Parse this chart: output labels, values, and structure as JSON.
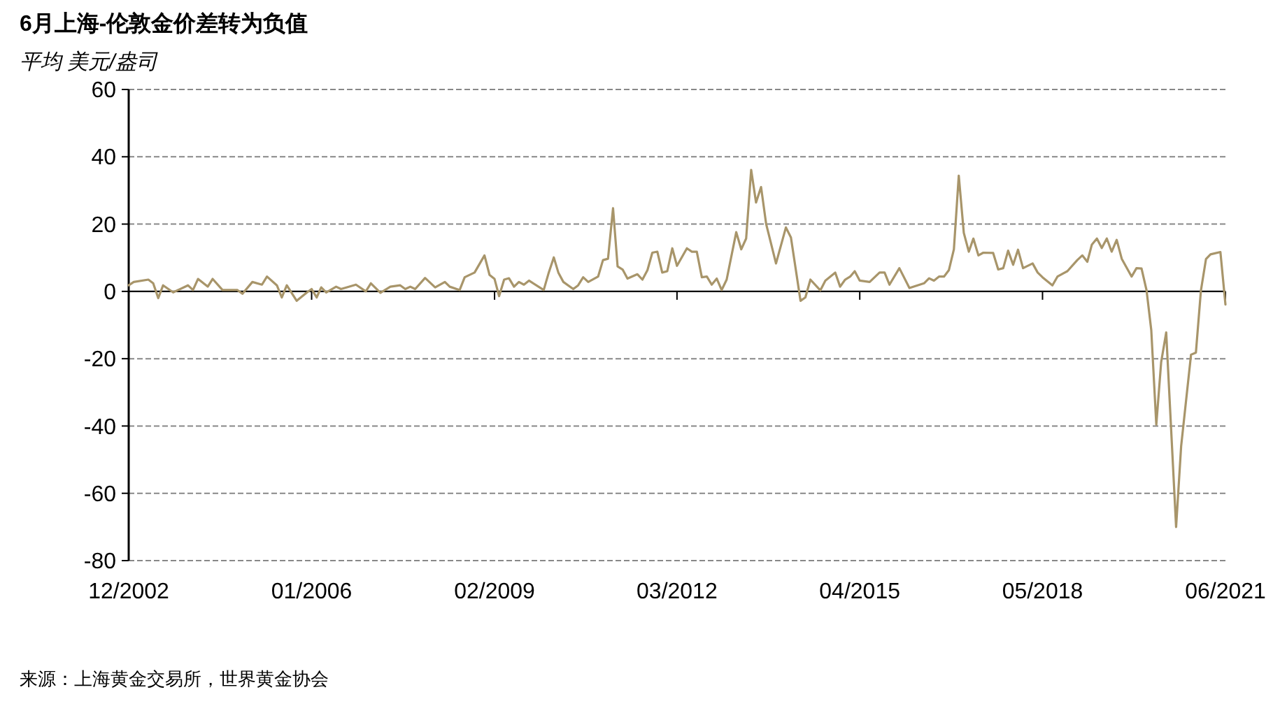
{
  "chart_data": {
    "type": "line",
    "title": "6月上海-伦敦金价差转为负值",
    "subtitle": "平均 美元/盎司",
    "x": [
      "2002-12",
      "2003-01",
      "2003-04",
      "2003-05",
      "2003-06",
      "2003-07",
      "2003-09",
      "2003-12",
      "2004-01",
      "2004-02",
      "2004-04",
      "2004-05",
      "2004-07",
      "2004-10",
      "2004-11",
      "2005-01",
      "2005-03",
      "2005-04",
      "2005-06",
      "2005-07",
      "2005-08",
      "2005-10",
      "2005-12",
      "2006-01",
      "2006-02",
      "2006-03",
      "2006-04",
      "2006-06",
      "2006-07",
      "2006-10",
      "2006-12",
      "2007-01",
      "2007-03",
      "2007-05",
      "2007-07",
      "2007-08",
      "2007-09",
      "2007-10",
      "2007-12",
      "2008-02",
      "2008-04",
      "2008-05",
      "2008-07",
      "2008-08",
      "2008-10",
      "2008-12",
      "2009-01",
      "2009-02",
      "2009-03",
      "2009-04",
      "2009-05",
      "2009-06",
      "2009-07",
      "2009-08",
      "2009-09",
      "2009-12",
      "2010-01",
      "2010-02",
      "2010-03",
      "2010-04",
      "2010-06",
      "2010-07",
      "2010-08",
      "2010-09",
      "2010-11",
      "2010-12",
      "2011-01",
      "2011-02",
      "2011-03",
      "2011-04",
      "2011-05",
      "2011-07",
      "2011-08",
      "2011-09",
      "2011-10",
      "2011-11",
      "2011-12",
      "2012-01",
      "2012-02",
      "2012-03",
      "2012-05",
      "2012-06",
      "2012-07",
      "2012-08",
      "2012-09",
      "2012-10",
      "2012-11",
      "2012-12",
      "2013-01",
      "2013-03",
      "2013-04",
      "2013-05",
      "2013-06",
      "2013-07",
      "2013-08",
      "2013-09",
      "2013-11",
      "2014-01",
      "2014-02",
      "2014-04",
      "2014-05",
      "2014-06",
      "2014-08",
      "2014-09",
      "2014-11",
      "2014-12",
      "2015-01",
      "2015-02",
      "2015-03",
      "2015-04",
      "2015-06",
      "2015-08",
      "2015-09",
      "2015-10",
      "2015-12",
      "2016-02",
      "2016-05",
      "2016-06",
      "2016-07",
      "2016-08",
      "2016-09",
      "2016-10",
      "2016-11",
      "2016-12",
      "2017-01",
      "2017-02",
      "2017-03",
      "2017-04",
      "2017-05",
      "2017-07",
      "2017-08",
      "2017-09",
      "2017-10",
      "2017-11",
      "2017-12",
      "2018-01",
      "2018-03",
      "2018-04",
      "2018-05",
      "2018-07",
      "2018-08",
      "2018-10",
      "2018-12",
      "2019-01",
      "2019-02",
      "2019-03",
      "2019-04",
      "2019-05",
      "2019-06",
      "2019-07",
      "2019-08",
      "2019-09",
      "2019-11",
      "2019-12",
      "2020-01",
      "2020-02",
      "2020-03",
      "2020-04",
      "2020-05",
      "2020-06",
      "2020-08",
      "2020-09",
      "2020-11",
      "2020-12",
      "2021-01",
      "2021-02",
      "2021-03",
      "2021-05",
      "2021-06"
    ],
    "series": [
      {
        "color": "#a8956a",
        "values": [
          1.8,
          2.8,
          3.5,
          2.4,
          -2,
          1.8,
          -0.3,
          1.8,
          0.4,
          3.7,
          1.4,
          3.7,
          0.4,
          0.4,
          -0.7,
          2.8,
          2,
          4.4,
          1.8,
          -1.8,
          1.8,
          -2.8,
          -0.4,
          0.7,
          -1.8,
          1.2,
          -0.3,
          1.4,
          0.7,
          2,
          0,
          2.4,
          -0.4,
          1.4,
          1.8,
          0.7,
          1.4,
          0.7,
          4,
          1.2,
          2.8,
          1.4,
          0.4,
          4.2,
          5.6,
          10.7,
          4.9,
          3.7,
          -1.4,
          3.5,
          3.9,
          1.4,
          2.8,
          2,
          3.2,
          0.4,
          5.6,
          10.1,
          5.6,
          2.8,
          0.7,
          1.8,
          4.2,
          2.8,
          4.4,
          9.3,
          9.7,
          24.7,
          7.4,
          6.5,
          3.8,
          5.1,
          3.5,
          6.3,
          11.5,
          11.8,
          5.6,
          6,
          12.8,
          7.6,
          12.8,
          11.8,
          11.8,
          4.2,
          4.4,
          2,
          3.8,
          0.4,
          3.5,
          17.6,
          12.5,
          15.7,
          36.1,
          26.4,
          31,
          20.1,
          8.3,
          19,
          16,
          -2.8,
          -1.8,
          3.5,
          0.3,
          3.2,
          5.6,
          1.4,
          3.5,
          4.4,
          6,
          3.2,
          2.8,
          5.6,
          5.6,
          2,
          6.9,
          1,
          2.4,
          3.9,
          3.2,
          4.4,
          4.4,
          6.3,
          12.5,
          34.4,
          17.4,
          11.8,
          15.7,
          10.7,
          11.5,
          11.4,
          6.5,
          6.9,
          12.1,
          7.9,
          12.4,
          6.9,
          8.3,
          5.6,
          4.2,
          1.8,
          4.4,
          6,
          9.3,
          10.7,
          8.8,
          13.9,
          15.7,
          12.9,
          15.7,
          11.8,
          15.3,
          9.7,
          4.4,
          6.9,
          6.8,
          0.3,
          -11.5,
          -39.6,
          -21,
          -12.2,
          -70,
          -46,
          -18.8,
          -18.2,
          0.3,
          9.6,
          11,
          11.7,
          -3.9
        ]
      }
    ],
    "xlim": [
      "2002-12",
      "2021-06"
    ],
    "xticks": [
      {
        "value": "2002-12",
        "label": "12/2002"
      },
      {
        "value": "2006-01",
        "label": "01/2006"
      },
      {
        "value": "2009-02",
        "label": "02/2009"
      },
      {
        "value": "2012-03",
        "label": "03/2012"
      },
      {
        "value": "2015-04",
        "label": "04/2015"
      },
      {
        "value": "2018-05",
        "label": "05/2018"
      },
      {
        "value": "2021-06",
        "label": "06/2021"
      }
    ],
    "ylim": [
      -80,
      60
    ],
    "yticks": [
      -80,
      -60,
      -40,
      -20,
      0,
      20,
      40,
      60
    ],
    "grid": "y",
    "line_style": "solid",
    "annotations": [
      "来源：上海黄金交易所，世界黄金协会"
    ]
  }
}
